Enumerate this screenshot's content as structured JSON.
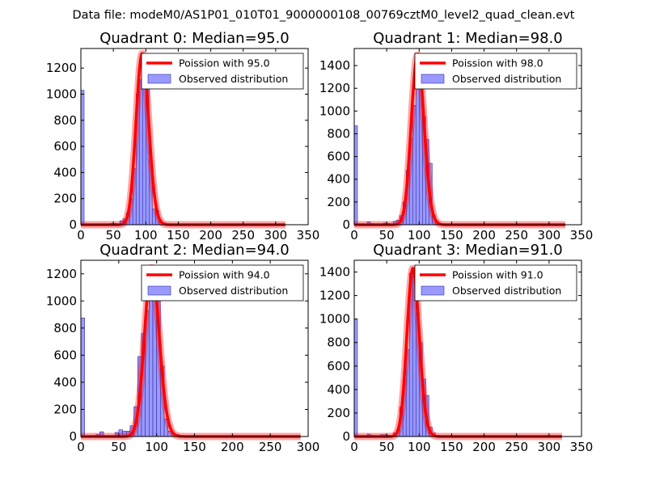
{
  "figure": {
    "suptitle": "Data file: modeM0/AS1P01_010T01_9000000108_00769cztM0_level2_quad_clean.evt",
    "colors": {
      "poisson": "#ff0000",
      "hist_fill": "#8080ff",
      "hist_edge": "#3333aa",
      "axes": "#000000"
    }
  },
  "chart_data": [
    {
      "type": "bar",
      "title": "Quadrant 0: Median=95.0",
      "legend": {
        "poisson": "Poission with 95.0",
        "observed": "Observed distribution",
        "placement": "top-right"
      },
      "xlim": [
        0,
        350
      ],
      "ylim": [
        0,
        1350
      ],
      "xticks": [
        0,
        50,
        100,
        150,
        200,
        250,
        300,
        350
      ],
      "yticks": [
        0,
        200,
        400,
        600,
        800,
        1000,
        1200
      ],
      "median": 95.0,
      "poisson_peak": 1310,
      "bin_width": 5,
      "bins": [
        [
          0,
          1030
        ],
        [
          20,
          8
        ],
        [
          25,
          3
        ],
        [
          45,
          10
        ],
        [
          50,
          10
        ],
        [
          60,
          30
        ],
        [
          65,
          45
        ],
        [
          70,
          90
        ],
        [
          75,
          200
        ],
        [
          80,
          430
        ],
        [
          85,
          1000
        ],
        [
          90,
          1110
        ],
        [
          95,
          1290
        ],
        [
          100,
          1140
        ],
        [
          105,
          500
        ],
        [
          110,
          120
        ],
        [
          115,
          110
        ],
        [
          120,
          30
        ],
        [
          125,
          15
        ]
      ],
      "tail_end": 315
    },
    {
      "type": "bar",
      "title": "Quadrant 1: Median=98.0",
      "legend": {
        "poisson": "Poission with 98.0",
        "observed": "Observed distribution",
        "placement": "top-right"
      },
      "xlim": [
        0,
        350
      ],
      "ylim": [
        0,
        1550
      ],
      "xticks": [
        0,
        50,
        100,
        150,
        200,
        250,
        300,
        350
      ],
      "yticks": [
        0,
        200,
        400,
        600,
        800,
        1000,
        1200,
        1400
      ],
      "median": 98.0,
      "poisson_peak": 1490,
      "bin_width": 5,
      "bins": [
        [
          0,
          870
        ],
        [
          20,
          25
        ],
        [
          25,
          10
        ],
        [
          45,
          15
        ],
        [
          50,
          10
        ],
        [
          60,
          30
        ],
        [
          65,
          40
        ],
        [
          70,
          80
        ],
        [
          75,
          200
        ],
        [
          80,
          480
        ],
        [
          85,
          760
        ],
        [
          90,
          1050
        ],
        [
          95,
          1310
        ],
        [
          100,
          1220
        ],
        [
          105,
          950
        ],
        [
          110,
          750
        ],
        [
          115,
          540
        ],
        [
          120,
          80
        ],
        [
          125,
          30
        ],
        [
          130,
          10
        ]
      ],
      "tail_end": 325
    },
    {
      "type": "bar",
      "title": "Quadrant 2: Median=94.0",
      "legend": {
        "poisson": "Poission with 94.0",
        "observed": "Observed distribution",
        "placement": "top-right"
      },
      "xlim": [
        0,
        300
      ],
      "ylim": [
        0,
        1300
      ],
      "xticks": [
        0,
        50,
        100,
        150,
        200,
        250,
        300
      ],
      "yticks": [
        0,
        200,
        400,
        600,
        800,
        1000,
        1200
      ],
      "median": 94.0,
      "poisson_peak": 1245,
      "bin_width": 5,
      "bins": [
        [
          0,
          875
        ],
        [
          20,
          15
        ],
        [
          25,
          35
        ],
        [
          45,
          30
        ],
        [
          50,
          50
        ],
        [
          55,
          40
        ],
        [
          60,
          40
        ],
        [
          65,
          80
        ],
        [
          70,
          220
        ],
        [
          75,
          590
        ],
        [
          80,
          760
        ],
        [
          85,
          930
        ],
        [
          90,
          1180
        ],
        [
          95,
          1140
        ],
        [
          100,
          1010
        ],
        [
          105,
          520
        ],
        [
          110,
          130
        ],
        [
          115,
          40
        ],
        [
          120,
          20
        ],
        [
          125,
          15
        ]
      ],
      "tail_end": 290
    },
    {
      "type": "bar",
      "title": "Quadrant 3: Median=91.0",
      "legend": {
        "poisson": "Poission with 91.0",
        "observed": "Observed distribution",
        "placement": "top-right"
      },
      "xlim": [
        0,
        350
      ],
      "ylim": [
        0,
        1500
      ],
      "xticks": [
        0,
        50,
        100,
        150,
        200,
        250,
        300,
        350
      ],
      "yticks": [
        0,
        200,
        400,
        600,
        800,
        1000,
        1200,
        1400
      ],
      "median": 91.0,
      "poisson_peak": 1430,
      "bin_width": 5,
      "bins": [
        [
          0,
          1000
        ],
        [
          20,
          20
        ],
        [
          25,
          10
        ],
        [
          40,
          15
        ],
        [
          45,
          15
        ],
        [
          50,
          10
        ],
        [
          60,
          30
        ],
        [
          65,
          50
        ],
        [
          70,
          250
        ],
        [
          75,
          490
        ],
        [
          80,
          740
        ],
        [
          85,
          1390
        ],
        [
          90,
          1420
        ],
        [
          95,
          1050
        ],
        [
          100,
          800
        ],
        [
          105,
          490
        ],
        [
          110,
          350
        ],
        [
          115,
          80
        ],
        [
          120,
          30
        ],
        [
          125,
          10
        ]
      ],
      "tail_end": 320
    }
  ]
}
